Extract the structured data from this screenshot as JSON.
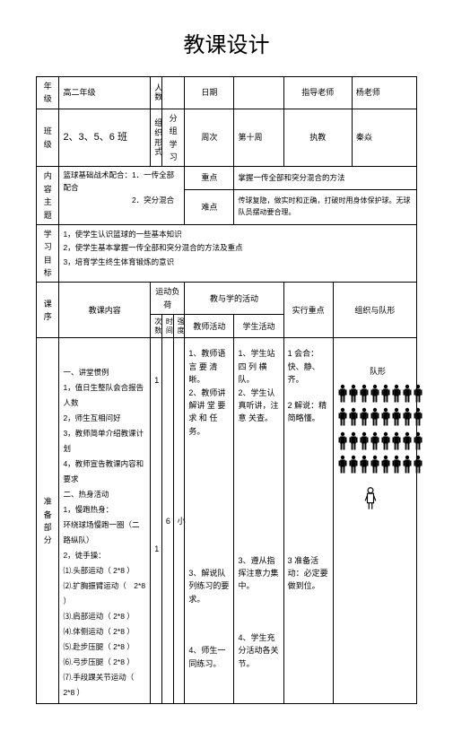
{
  "title": "教课设计",
  "header": {
    "grade_label": "年级",
    "grade_value": "高二年级",
    "people_label": "人数",
    "people_value": "",
    "date_label": "日期",
    "date_value": "",
    "advisor_label": "指导老师",
    "advisor_value": "杨老师",
    "class_label": "班级",
    "class_value": "2、3、5、6 班",
    "org_label": "组织形式",
    "org_value": "分组学习",
    "weekn_label": "周次",
    "weekn_value": "第十周",
    "teacher_label": "执教",
    "teacher_value": "秦焱"
  },
  "topic": {
    "label": "内容主题",
    "text": "篮球基础战术配合：1．一传全部配合\n　　　　　　　　　2．突分混合",
    "focus_label": "重点",
    "focus_text": "掌握一传全部和突分混合的方法",
    "difficulty_label": "难点",
    "difficulty_text": "传球复隐，做实时和正确，打破时用身体保护球。无球队员摆动要合理。"
  },
  "objectives": {
    "label": "学习目标",
    "text": "1，使学生认识篮球的一些基本知识\n2，使学生基本掌握一传全部和突分混合的方法及重点\n3，培育学生终生体育锻炼的意识"
  },
  "columns": {
    "section_label": "课序",
    "content_label": "教课内容",
    "load_label": "运动负荷",
    "times_label": "次数",
    "time_label": "时间",
    "intensity_label": "强度",
    "activities_label": "教与学的活动",
    "teacher_label": "教师活动",
    "student_label": "学生活动",
    "practice_label": "实行重点",
    "formation_label": "组织与队形"
  },
  "prep": {
    "section_label": "准备部分",
    "content_text": "一、讲堂惯例\n1，值日生整队会合报告人数\n2，师生互相问好\n3，教师简单介绍教课计划\n4，教师宣告教课内容和要求\n二、热身活动\n1，慢跑热身：\n环绕球场慢跑一圈（二路纵队）\n2，徒手操：\n⑴.头部运动（ 2*8 ）\n⑵.扩胸振臂运动（　2*8 ）\n⑶.肩部运动（ 2*8 ）\n⑷.体侧运动（ 2*8 ）\n⑸.赴步压腿（ 2*8 ）\n⑹.弓步压腿（ 2*8 ）\n⑺.手段踝关节运动（　2*8 ）",
    "times": "1\n\n\n\n\n\n\n\n\n\n\n\n\n1",
    "time": "6",
    "intensity": "小",
    "teacher_act": "1、教师语言 要 清晰。\n2、教师讲解讲 堂 要求 和 任务。\n\n\n\n\n\n\n\n\n\n\n3、解说队列练习的要求。\n\n\n\n4、师生一同练习。",
    "student_act": "1、学生站四 列 横队。\n2、学生认真听讲，注 意 关查。\n\n\n\n\n\n\n\n\n\n\n3、遵从指挥注意力集中。\n\n\n\n4、学生充分活动各关节。",
    "practice": "1 会合：快、静、齐。\n\n2 解说：精简略懂。\n\n\n\n\n\n\n\n\n\n\n3 准备活动：必定要做到位。",
    "formation_label": "队形",
    "student_rows": 4,
    "student_cols": 8,
    "person_color": "#000000"
  },
  "colors": {
    "border": "#000000",
    "text": "#000000",
    "background": "#ffffff"
  }
}
